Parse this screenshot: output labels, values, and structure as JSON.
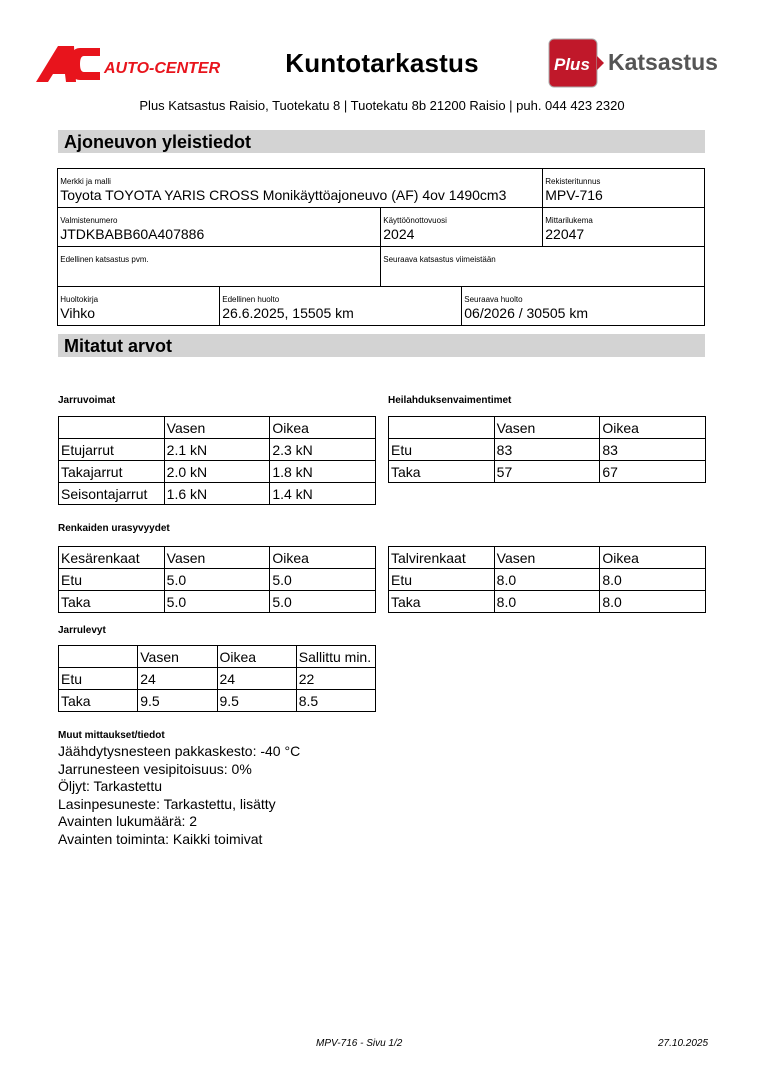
{
  "header": {
    "title": "Kuntotarkastus",
    "address": "Plus Katsastus Raisio, Tuotekatu 8 | Tuotekatu 8b 21200 Raisio | puh. 044 423 2320",
    "logo_left": {
      "mark": "AC",
      "text": "Auto-Center",
      "color": "#e8141c"
    },
    "logo_right": {
      "mark": "Plus",
      "text": "Katsastus",
      "color": "#c0182a"
    }
  },
  "vehicle": {
    "section_title": "Ajoneuvon yleistiedot",
    "make_model": {
      "label": "Merkki ja malli",
      "value": "Toyota TOYOTA YARIS CROSS Monikäyttöajoneuvo (AF) 4ov 1490cm3"
    },
    "registration": {
      "label": "Rekisteritunnus",
      "value": "MPV-716"
    },
    "vin": {
      "label": "Valmistenumero",
      "value": "JTDKBABB60A407886"
    },
    "first_use_year": {
      "label": "Käyttöönottovuosi",
      "value": "2024"
    },
    "odometer": {
      "label": "Mittarilukema",
      "value": "22047"
    },
    "prev_inspection": {
      "label": "Edellinen katsastus pvm.",
      "value": ""
    },
    "next_inspection": {
      "label": "Seuraava katsastus viimeistään",
      "value": ""
    },
    "service_book": {
      "label": "Huoltokirja",
      "value": "Vihko"
    },
    "prev_service": {
      "label": "Edellinen huolto",
      "value": "26.6.2025, 15505 km"
    },
    "next_service": {
      "label": "Seuraava huolto",
      "value": "06/2026 / 30505 km"
    }
  },
  "measured": {
    "section_title": "Mitatut arvot",
    "brakes": {
      "title": "Jarruvoimat",
      "rows": [
        [
          "",
          "Vasen",
          "Oikea"
        ],
        [
          "Etujarrut",
          "2.1 kN",
          "2.3 kN"
        ],
        [
          "Takajarrut",
          "2.0 kN",
          "1.8 kN"
        ],
        [
          "Seisontajarrut",
          "1.6 kN",
          "1.4 kN"
        ]
      ]
    },
    "shocks": {
      "title": "Heilahduksenvaimentimet",
      "rows": [
        [
          "",
          "Vasen",
          "Oikea"
        ],
        [
          "Etu",
          "83",
          "83"
        ],
        [
          "Taka",
          "57",
          "67"
        ]
      ]
    },
    "tires_title": "Renkaiden urasyvyydet",
    "summer": {
      "rows": [
        [
          "Kesärenkaat",
          "Vasen",
          "Oikea"
        ],
        [
          "Etu",
          "5.0",
          "5.0"
        ],
        [
          "Taka",
          "5.0",
          "5.0"
        ]
      ]
    },
    "winter": {
      "rows": [
        [
          "Talvirenkaat",
          "Vasen",
          "Oikea"
        ],
        [
          "Etu",
          "8.0",
          "8.0"
        ],
        [
          "Taka",
          "8.0",
          "8.0"
        ]
      ]
    },
    "discs": {
      "title": "Jarrulevyt",
      "rows": [
        [
          "",
          "Vasen",
          "Oikea",
          "Sallittu min."
        ],
        [
          "Etu",
          "24",
          "24",
          "22"
        ],
        [
          "Taka",
          "9.5",
          "9.5",
          "8.5"
        ]
      ]
    },
    "other": {
      "title": "Muut mittaukset/tiedot",
      "lines": [
        "Jäähdytysnesteen pakkaskesto: -40 °C",
        "Jarrunesteen vesipitoisuus: 0%",
        "Öljyt: Tarkastettu",
        "Lasinpesuneste: Tarkastettu, lisätty",
        "Avainten lukumäärä: 2",
        "Avainten toiminta: Kaikki toimivat"
      ]
    }
  },
  "footer": {
    "page": "MPV-716 - Sivu 1/2",
    "date": "27.10.2025"
  }
}
